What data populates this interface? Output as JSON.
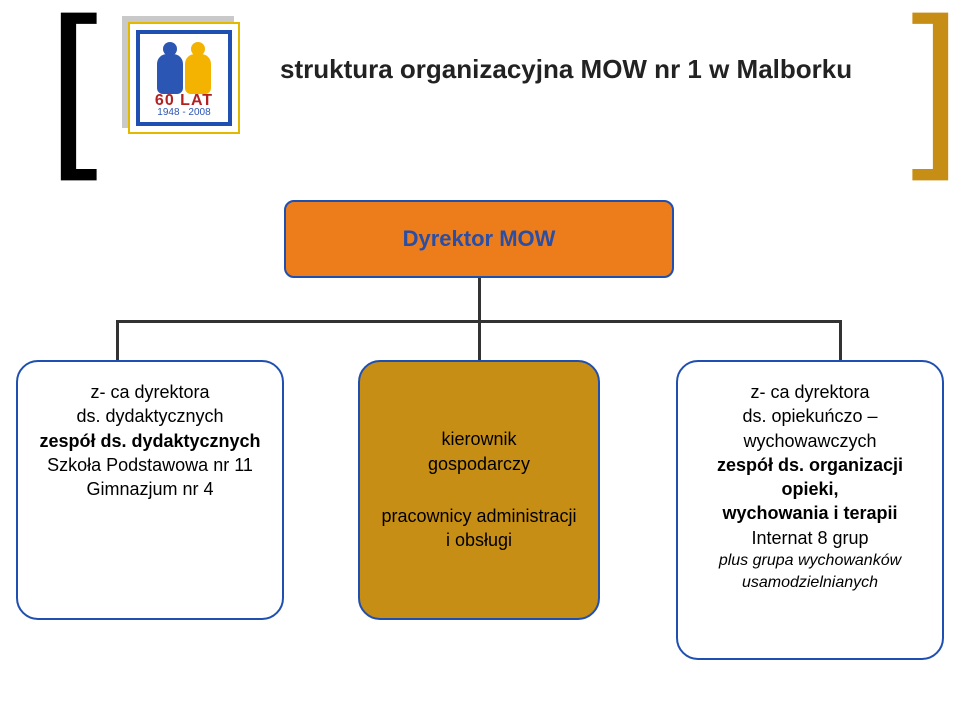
{
  "colors": {
    "accent_orange": "#ed7d1b",
    "node_orange": "#c78e15",
    "border_blue": "#1f4fb0",
    "bracket_right": "#c78e15",
    "logo_red": "#b22222",
    "logo_blue": "#2b56b3",
    "logo_yellow": "#f3b300"
  },
  "header": {
    "title": "struktura organizacyjna MOW nr 1 w Malborku",
    "logo": {
      "line1": "60 LAT",
      "years": "1948 - 2008"
    }
  },
  "org": {
    "director": "Dyrektor MOW",
    "left": {
      "l1": "z- ca dyrektora",
      "l2": "ds. dydaktycznych",
      "l3": "zespół ds. dydaktycznych",
      "l4": "Szkoła Podstawowa nr 11",
      "l5": "Gimnazjum nr 4"
    },
    "center": {
      "top1": "kierownik",
      "top2": "gospodarczy",
      "bot1": "pracownicy administracji",
      "bot2": "i obsługi"
    },
    "right": {
      "l1": "z- ca dyrektora",
      "l2": "ds. opiekuńczo –",
      "l3": "wychowawczych",
      "l4": "zespół ds. organizacji",
      "l5": "opieki,",
      "l6": "wychowania i terapii",
      "l7": "Internat 8 grup",
      "l8": "plus grupa wychowanków",
      "l9": "usamodzielnianych"
    }
  }
}
